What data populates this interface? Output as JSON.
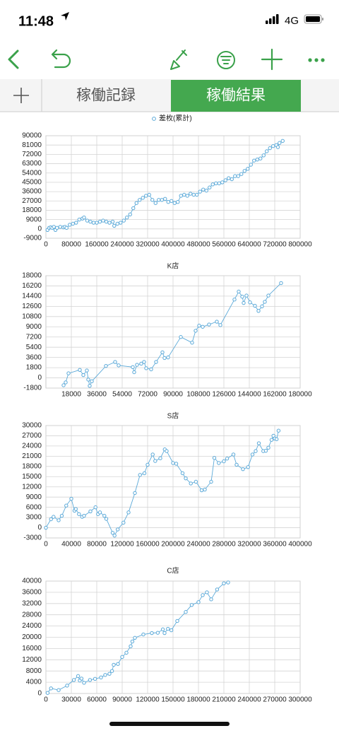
{
  "status_bar": {
    "time": "11:48",
    "network": "4G"
  },
  "tabs": [
    "稼働記録",
    "稼働結果"
  ],
  "chart_data": [
    {
      "type": "line",
      "legend": true,
      "color": "#5ba9d8",
      "x": [
        5000,
        10000,
        15000,
        20000,
        25000,
        30000,
        35000,
        45000,
        55000,
        60000,
        65000,
        75000,
        85000,
        95000,
        105000,
        115000,
        120000,
        130000,
        140000,
        150000,
        160000,
        170000,
        180000,
        190000,
        200000,
        210000,
        215000,
        225000,
        235000,
        245000,
        255000,
        265000,
        275000,
        285000,
        295000,
        305000,
        315000,
        325000,
        335000,
        345000,
        355000,
        365000,
        375000,
        385000,
        395000,
        405000,
        415000,
        425000,
        435000,
        445000,
        455000,
        465000,
        475000,
        485000,
        495000,
        505000,
        515000,
        525000,
        535000,
        545000,
        555000,
        565000,
        575000,
        585000,
        595000,
        605000,
        615000,
        625000,
        635000,
        645000,
        655000,
        665000,
        675000,
        685000,
        695000,
        705000,
        715000,
        725000,
        730000,
        735000,
        745000
      ],
      "series": [
        {
          "name": "差枚(累計)",
          "color": "#5ba9d8",
          "values": [
            -1000,
            1000,
            1500,
            1000,
            2000,
            -1000,
            1000,
            2000,
            1500,
            2000,
            1000,
            4000,
            5000,
            6000,
            9000,
            10000,
            11000,
            8000,
            7000,
            6000,
            6000,
            7000,
            8000,
            7000,
            6000,
            7000,
            3000,
            5000,
            6000,
            8000,
            11000,
            14000,
            20000,
            25000,
            28000,
            30000,
            32000,
            33000,
            28000,
            25000,
            28000,
            28000,
            29000,
            26000,
            27000,
            25000,
            26000,
            32000,
            33000,
            32000,
            34000,
            33000,
            33000,
            36000,
            38000,
            37000,
            40000,
            43000,
            44000,
            44000,
            45000,
            47000,
            49000,
            48000,
            51000,
            51000,
            53000,
            56000,
            58000,
            62000,
            66000,
            67000,
            68000,
            71000,
            75000,
            78000,
            80000,
            81000,
            79000,
            83000,
            85000
          ]
        }
      ],
      "xlim": [
        0,
        800000
      ],
      "xticks": [
        0,
        80000,
        160000,
        240000,
        320000,
        400000,
        480000,
        560000,
        640000,
        720000,
        800000
      ],
      "ylim": [
        -9000,
        90000
      ],
      "yticks": [
        90000,
        81000,
        72000,
        63000,
        54000,
        45000,
        36000,
        27000,
        18000,
        9000,
        0,
        -9000
      ],
      "grid": true
    },
    {
      "type": "line",
      "title": "K店",
      "color": "#5ba9d8",
      "x": [
        12500,
        14000,
        16000,
        24000,
        26500,
        29000,
        30000,
        31000,
        32500,
        42500,
        49000,
        51500,
        61500,
        62500,
        64500,
        67500,
        69500,
        71000,
        74500,
        78000,
        82500,
        84000,
        86500,
        95500,
        103500,
        106000,
        108500,
        111000,
        115500,
        121000,
        123500,
        133500,
        136500,
        139000,
        140000,
        142000,
        144500,
        148000,
        150500,
        153000,
        155000,
        157500,
        166500
      ],
      "series": [
        {
          "color": "#5ba9d8",
          "values": [
            -1300,
            -800,
            800,
            1400,
            500,
            1300,
            -300,
            -1400,
            -600,
            2100,
            2800,
            2200,
            1900,
            1000,
            2300,
            2500,
            2800,
            1700,
            1500,
            2800,
            4500,
            3500,
            3600,
            7200,
            6200,
            8300,
            9200,
            9000,
            9400,
            9900,
            9300,
            13800,
            15200,
            14300,
            13200,
            14500,
            13300,
            12700,
            11800,
            12600,
            13400,
            14500,
            16700
          ]
        }
      ],
      "xlim": [
        0,
        180000
      ],
      "xticks": [
        18000,
        36000,
        54000,
        72000,
        90000,
        108000,
        126000,
        144000,
        162000,
        180000
      ],
      "ylim": [
        -1800,
        18000
      ],
      "yticks": [
        18000,
        16200,
        14400,
        12600,
        10800,
        9000,
        7200,
        5400,
        3600,
        1800,
        0,
        -1800
      ],
      "grid": true
    },
    {
      "type": "line",
      "title": "S店",
      "color": "#5ba9d8",
      "x": [
        0,
        8000,
        12000,
        20000,
        25000,
        32000,
        40000,
        45000,
        47000,
        52000,
        57000,
        60000,
        70000,
        78000,
        82000,
        85000,
        92000,
        95000,
        105000,
        108000,
        113000,
        122000,
        130000,
        140000,
        148000,
        155000,
        160000,
        168000,
        172000,
        180000,
        187000,
        190000,
        200000,
        205000,
        215000,
        220000,
        228000,
        236000,
        245000,
        250000,
        260000,
        265000,
        272000,
        280000,
        285000,
        295000,
        300000,
        310000,
        318000,
        325000,
        330000,
        335000,
        342000,
        346000,
        350000,
        355000,
        358000,
        360000,
        363000,
        366000
      ],
      "series": [
        {
          "color": "#5ba9d8",
          "values": [
            0,
            2500,
            3200,
            2200,
            3500,
            6500,
            8500,
            5000,
            5500,
            4000,
            3200,
            3500,
            4800,
            6000,
            4000,
            4500,
            3500,
            2600,
            -1500,
            -2300,
            -500,
            1500,
            4500,
            10200,
            15500,
            16000,
            18500,
            21500,
            19600,
            20400,
            23000,
            22500,
            19000,
            18800,
            16000,
            14500,
            13000,
            13500,
            11000,
            11200,
            13500,
            20500,
            19000,
            19500,
            20300,
            21500,
            18500,
            17200,
            17800,
            21500,
            22500,
            24800,
            22500,
            22600,
            23500,
            25800,
            27000,
            26200,
            26000,
            28500
          ]
        }
      ],
      "xlim": [
        0,
        400000
      ],
      "xticks": [
        0,
        40000,
        80000,
        120000,
        160000,
        200000,
        240000,
        280000,
        320000,
        360000,
        400000
      ],
      "ylim": [
        -3000,
        30000
      ],
      "yticks": [
        30000,
        27000,
        24000,
        21000,
        18000,
        15000,
        12000,
        9000,
        6000,
        3000,
        0,
        -3000
      ],
      "grid": true
    },
    {
      "type": "line",
      "title": "C店",
      "color": "#5ba9d8",
      "x": [
        2000,
        6000,
        15000,
        25000,
        33000,
        38000,
        40000,
        42000,
        45000,
        52000,
        58000,
        65000,
        70000,
        75000,
        78000,
        80000,
        85000,
        90000,
        95000,
        100000,
        102000,
        105000,
        115000,
        125000,
        132000,
        138000,
        140000,
        144000,
        148000,
        155000,
        165000,
        172000,
        180000,
        185000,
        190000,
        195000,
        202000,
        210000,
        215000
      ],
      "series": [
        {
          "color": "#5ba9d8",
          "values": [
            200,
            1800,
            1200,
            2800,
            4800,
            6200,
            4600,
            5300,
            3800,
            4800,
            5200,
            5700,
            6600,
            7000,
            8000,
            10200,
            10500,
            13000,
            14500,
            16800,
            18500,
            19800,
            21000,
            21500,
            21600,
            22800,
            21500,
            23000,
            22500,
            25800,
            29000,
            31500,
            32500,
            35000,
            36000,
            33500,
            37000,
            39200,
            39500
          ]
        }
      ],
      "xlim": [
        0,
        300000
      ],
      "xticks": [
        0,
        30000,
        60000,
        90000,
        120000,
        150000,
        180000,
        210000,
        240000,
        270000,
        300000
      ],
      "ylim": [
        0,
        40000
      ],
      "yticks": [
        40000,
        36000,
        32000,
        28000,
        24000,
        20000,
        16000,
        12000,
        8000,
        4000,
        0
      ],
      "grid": true
    }
  ]
}
